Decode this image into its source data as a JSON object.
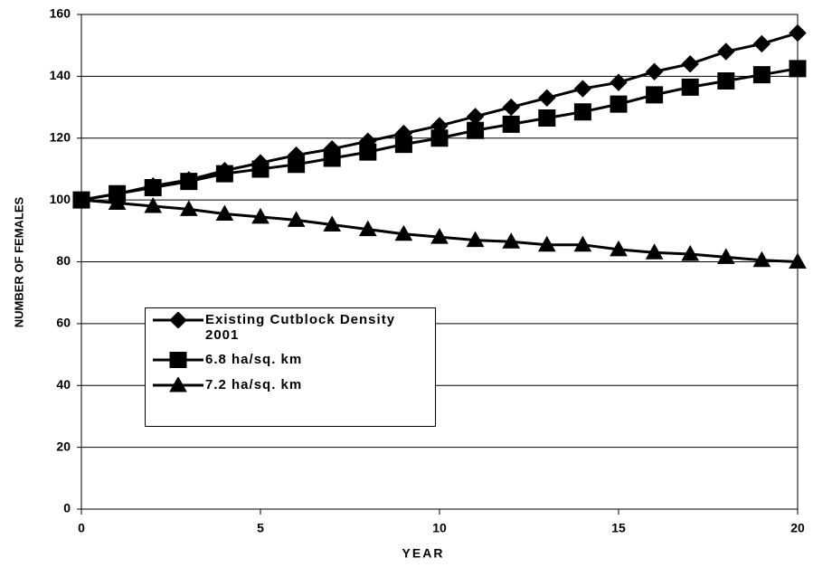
{
  "chart_data": {
    "type": "line",
    "xlabel": "YEAR",
    "ylabel": "NUMBER OF FEMALES",
    "x": [
      0,
      1,
      2,
      3,
      4,
      5,
      6,
      7,
      8,
      9,
      10,
      11,
      12,
      13,
      14,
      15,
      16,
      17,
      18,
      19,
      20
    ],
    "series": [
      {
        "name": "Existing Cutblock Density 2001",
        "color": "#000000",
        "marker": "diamond",
        "values": [
          100,
          102,
          104.5,
          106.5,
          109.5,
          112,
          114.5,
          116.5,
          119,
          121.5,
          124,
          127,
          130,
          133,
          136,
          138,
          141.5,
          144,
          148,
          150.5,
          154
        ]
      },
      {
        "name": "6.8 ha/sq. km",
        "color": "#000000",
        "marker": "square",
        "values": [
          100,
          102,
          104,
          106,
          108.5,
          110,
          111.5,
          113.5,
          115.5,
          118,
          120,
          122.5,
          124.5,
          126.5,
          128.5,
          131,
          134,
          136.5,
          138.5,
          140.5,
          142.5
        ]
      },
      {
        "name": "7.2 ha/sq. km",
        "color": "#000000",
        "marker": "triangle",
        "values": [
          100,
          99,
          98,
          97,
          95.5,
          94.5,
          93.5,
          92,
          90.5,
          89,
          88,
          87,
          86.5,
          85.5,
          85.5,
          84,
          83,
          82.5,
          81.5,
          80.5,
          80
        ]
      }
    ],
    "xlim": [
      0,
      20
    ],
    "xticks": [
      0,
      5,
      10,
      15,
      20
    ],
    "ylim": [
      0,
      160
    ],
    "yticks": [
      0,
      20,
      40,
      60,
      80,
      100,
      120,
      140,
      160
    ],
    "grid": true
  }
}
